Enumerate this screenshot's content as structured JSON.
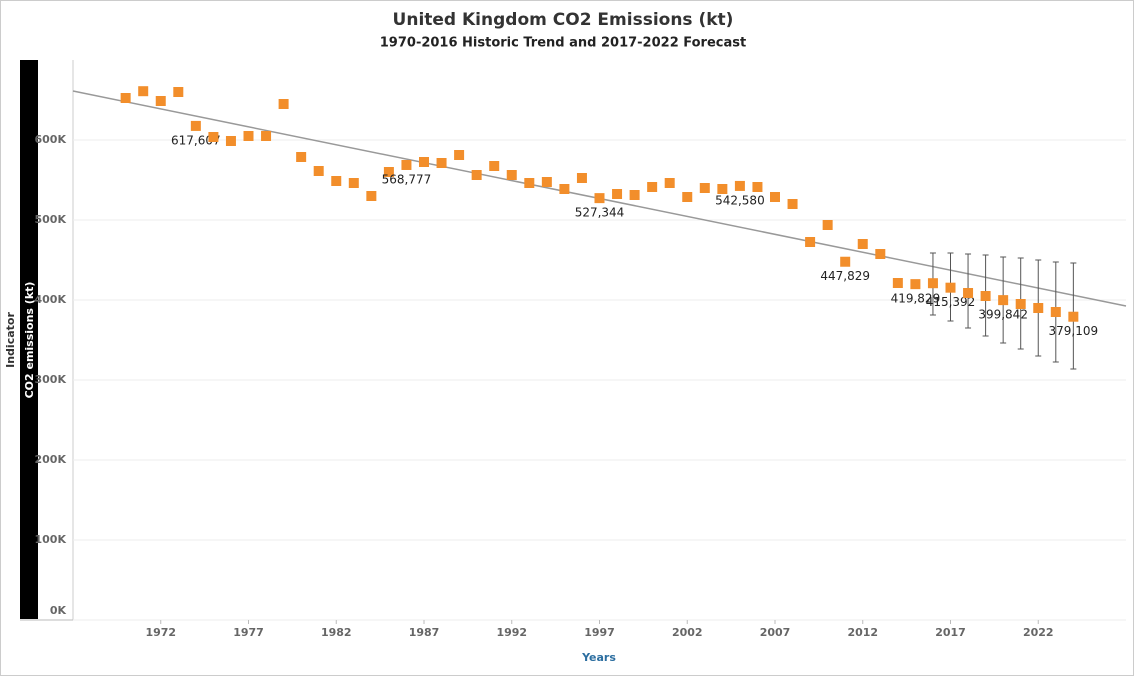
{
  "chart_data": {
    "type": "scatter",
    "title": "United Kingdom CO2 Emissions (kt)",
    "subtitle": "1970-2016 Historic Trend and 2017-2022 Forecast",
    "x_label": "Years",
    "y_label_outer": "Indicator",
    "y_label": "CO2 emissions (kt)",
    "x": [
      1970,
      1971,
      1972,
      1973,
      1974,
      1975,
      1976,
      1977,
      1978,
      1979,
      1980,
      1981,
      1982,
      1983,
      1984,
      1985,
      1986,
      1987,
      1988,
      1989,
      1990,
      1991,
      1992,
      1993,
      1994,
      1995,
      1996,
      1997,
      1998,
      1999,
      2000,
      2001,
      2002,
      2003,
      2004,
      2005,
      2006,
      2007,
      2008,
      2009,
      2010,
      2011,
      2012,
      2013,
      2014,
      2015,
      2016,
      2017,
      2018,
      2019,
      2020,
      2021,
      2022,
      2023,
      2024
    ],
    "series": [
      {
        "name": "CO2 emissions (kt)",
        "color": "#f28e2b",
        "values": [
          652500,
          661000,
          648750,
          660000,
          617607,
          603750,
          598750,
          605000,
          605000,
          645000,
          578750,
          561250,
          548750,
          546250,
          530000,
          560000,
          568777,
          572500,
          571250,
          581250,
          556250,
          567500,
          556250,
          546250,
          547500,
          538750,
          552500,
          527344,
          532500,
          531250,
          541250,
          546250,
          528750,
          540000,
          538750,
          542580,
          541250,
          528750,
          520000,
          472500,
          493750,
          447829,
          470000,
          457500,
          421250,
          419829,
          421000,
          415392,
          408750,
          405000,
          399842,
          395000,
          390000,
          385000,
          379109
        ],
        "value_labels": [
          null,
          null,
          null,
          null,
          "617,607",
          null,
          null,
          null,
          null,
          null,
          null,
          null,
          null,
          null,
          null,
          null,
          "568,777",
          null,
          null,
          null,
          null,
          null,
          null,
          null,
          null,
          null,
          null,
          "527,344",
          null,
          null,
          null,
          null,
          null,
          null,
          null,
          "542,580",
          null,
          null,
          null,
          null,
          null,
          "447,829",
          null,
          null,
          null,
          "419,829",
          null,
          "415,392",
          null,
          null,
          "399,842",
          null,
          null,
          null,
          "379,109"
        ],
        "error_low": [
          null,
          null,
          null,
          null,
          null,
          null,
          null,
          null,
          null,
          null,
          null,
          null,
          null,
          null,
          null,
          null,
          null,
          null,
          null,
          null,
          null,
          null,
          null,
          null,
          null,
          null,
          null,
          null,
          null,
          null,
          null,
          null,
          null,
          null,
          null,
          null,
          null,
          null,
          null,
          null,
          null,
          null,
          null,
          null,
          null,
          null,
          381250,
          373750,
          365000,
          355000,
          346250,
          338750,
          330000,
          322500,
          313750
        ],
        "error_high": [
          null,
          null,
          null,
          null,
          null,
          null,
          null,
          null,
          null,
          null,
          null,
          null,
          null,
          null,
          null,
          null,
          null,
          null,
          null,
          null,
          null,
          null,
          null,
          null,
          null,
          null,
          null,
          null,
          null,
          null,
          null,
          null,
          null,
          null,
          null,
          null,
          null,
          null,
          null,
          null,
          null,
          null,
          null,
          null,
          null,
          null,
          458750,
          458750,
          457500,
          456250,
          453750,
          452500,
          450000,
          447500,
          446250
        ]
      }
    ],
    "trend": {
      "color": "#999999",
      "x": [
        1967,
        2027
      ],
      "values": [
        661250,
        392500
      ]
    },
    "xlim": [
      1967,
      2027
    ],
    "xticks": [
      1972,
      1977,
      1982,
      1987,
      1992,
      1997,
      2002,
      2007,
      2012,
      2017,
      2022
    ],
    "ylim": [
      0,
      700000
    ],
    "yticks": [
      {
        "value": 0,
        "label": "0K"
      },
      {
        "value": 100000,
        "label": "100K"
      },
      {
        "value": 200000,
        "label": "200K"
      },
      {
        "value": 300000,
        "label": "300K"
      },
      {
        "value": 400000,
        "label": "400K"
      },
      {
        "value": 500000,
        "label": "500K"
      },
      {
        "value": 600000,
        "label": "600K"
      }
    ],
    "grid": true
  }
}
